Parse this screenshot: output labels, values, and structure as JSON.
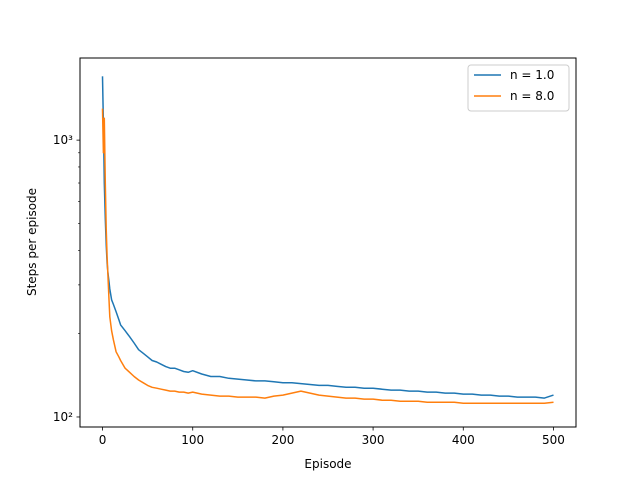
{
  "chart_data": {
    "type": "line",
    "title": "",
    "xlabel": "Episode",
    "ylabel": "Steps per episode",
    "yscale": "log",
    "xlim": [
      -25,
      525
    ],
    "ylim": [
      92,
      1980
    ],
    "grid": false,
    "legend_position": "top-right",
    "x_ticks": [
      0,
      100,
      200,
      300,
      400,
      500
    ],
    "x_tick_labels": [
      "0",
      "100",
      "200",
      "300",
      "400",
      "500"
    ],
    "y_ticks": [
      100,
      1000
    ],
    "y_tick_labels": [
      "10²",
      "10³"
    ],
    "series": [
      {
        "name": "n = 1.0",
        "color": "#1f77b4",
        "x": [
          0,
          1,
          2,
          3,
          4,
          5,
          6,
          7,
          8,
          10,
          12,
          15,
          18,
          20,
          25,
          30,
          35,
          40,
          45,
          50,
          55,
          60,
          65,
          70,
          75,
          80,
          85,
          90,
          95,
          100,
          110,
          120,
          130,
          140,
          150,
          160,
          170,
          180,
          190,
          200,
          210,
          220,
          230,
          240,
          250,
          260,
          270,
          280,
          290,
          300,
          310,
          320,
          330,
          340,
          350,
          360,
          370,
          380,
          390,
          400,
          410,
          420,
          430,
          440,
          450,
          460,
          470,
          480,
          490,
          500
        ],
        "values": [
          1700,
          1150,
          700,
          520,
          420,
          360,
          330,
          310,
          290,
          265,
          255,
          240,
          225,
          215,
          205,
          195,
          185,
          175,
          170,
          165,
          160,
          158,
          155,
          152,
          150,
          150,
          148,
          146,
          145,
          147,
          143,
          140,
          140,
          138,
          137,
          136,
          135,
          135,
          134,
          133,
          133,
          132,
          131,
          130,
          130,
          129,
          128,
          128,
          127,
          127,
          126,
          125,
          125,
          124,
          124,
          123,
          123,
          122,
          122,
          121,
          121,
          120,
          120,
          119,
          119,
          118,
          118,
          118,
          117,
          120
        ]
      },
      {
        "name": "n = 8.0",
        "color": "#ff7f0e",
        "x": [
          0,
          1,
          2,
          3,
          4,
          5,
          6,
          7,
          8,
          10,
          12,
          15,
          18,
          20,
          25,
          30,
          35,
          40,
          45,
          50,
          55,
          60,
          65,
          70,
          75,
          80,
          85,
          90,
          95,
          100,
          110,
          120,
          130,
          140,
          150,
          160,
          170,
          180,
          190,
          200,
          210,
          220,
          230,
          240,
          250,
          260,
          270,
          280,
          290,
          300,
          310,
          320,
          330,
          340,
          350,
          360,
          370,
          380,
          390,
          400,
          410,
          420,
          430,
          440,
          450,
          460,
          470,
          480,
          490,
          500
        ],
        "values": [
          1300,
          900,
          1200,
          700,
          480,
          380,
          320,
          270,
          230,
          205,
          190,
          172,
          165,
          160,
          150,
          145,
          140,
          136,
          133,
          130,
          128,
          127,
          126,
          125,
          124,
          124,
          123,
          123,
          122,
          123,
          121,
          120,
          119,
          119,
          118,
          118,
          118,
          117,
          119,
          120,
          122,
          124,
          122,
          120,
          119,
          118,
          117,
          117,
          116,
          116,
          115,
          115,
          114,
          114,
          114,
          113,
          113,
          113,
          113,
          112,
          112,
          112,
          112,
          112,
          112,
          112,
          112,
          112,
          112,
          113
        ]
      }
    ]
  }
}
